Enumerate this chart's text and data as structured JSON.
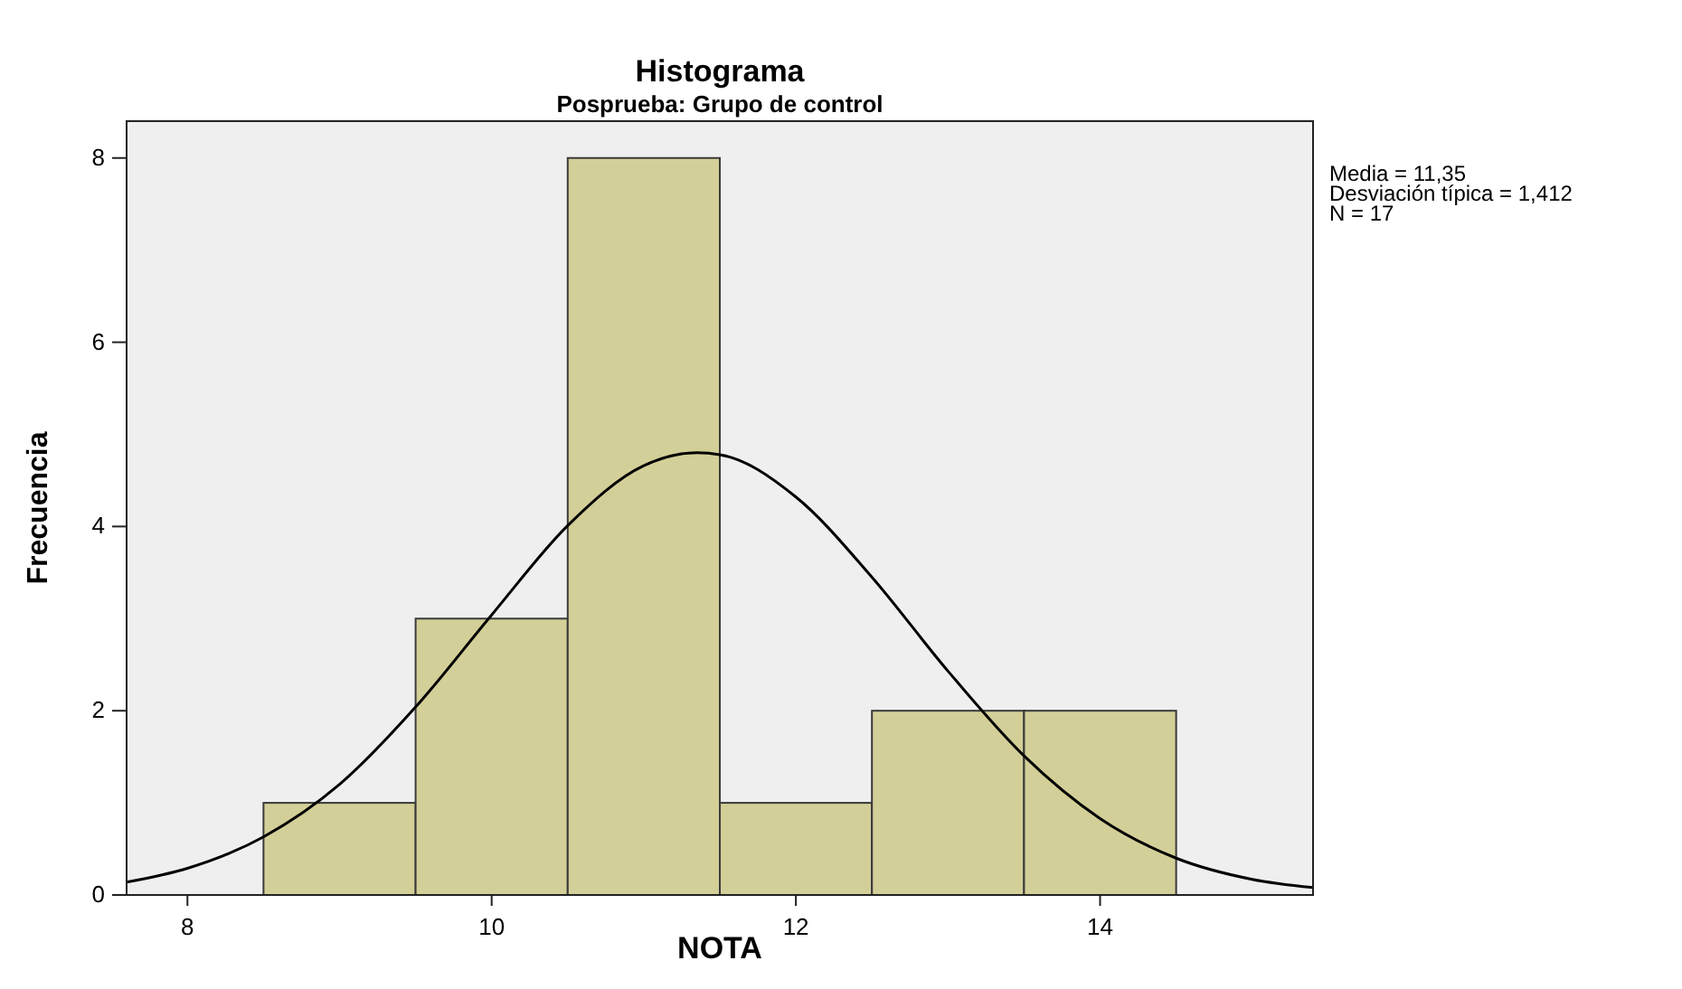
{
  "chart_data": {
    "type": "histogram",
    "title": "Histograma",
    "subtitle": "Posprueba: Grupo de control",
    "xlabel": "NOTA",
    "ylabel": "Frecuencia",
    "bins": [
      8.5,
      9.5,
      10.5,
      11.5,
      12.5,
      13.5,
      14.5
    ],
    "series": [
      {
        "color": "#d3cf98",
        "values": [
          1,
          3,
          8,
          1,
          2,
          2
        ]
      },
      {
        "type": "line",
        "color": "#000000",
        "x": [
          7.6,
          8,
          8.5,
          9,
          9.5,
          10,
          10.5,
          11,
          11.35,
          11.5,
          12,
          12.5,
          13,
          13.5,
          14,
          14.5,
          15,
          15.4
        ],
        "values": [
          0.14,
          0.29,
          0.63,
          1.2,
          2.04,
          3.04,
          4.01,
          4.66,
          4.8,
          4.78,
          4.32,
          3.45,
          2.43,
          1.51,
          0.83,
          0.4,
          0.17,
          0.08
        ]
      }
    ],
    "xlim": [
      7.6,
      15.4
    ],
    "xticks": [
      8,
      10,
      12,
      14
    ],
    "ylim": [
      0,
      8.4
    ],
    "yticks": [
      0,
      2,
      4,
      6,
      8
    ],
    "grid": false,
    "annotations": [
      "Media = 11,35",
      "Desviación típica = 1,412",
      "N = 17"
    ]
  }
}
